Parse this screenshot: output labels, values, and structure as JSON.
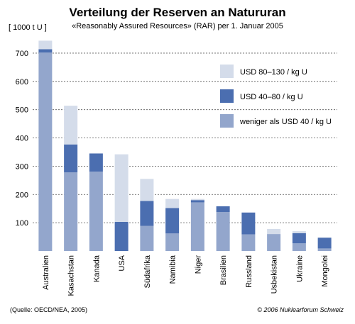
{
  "chart_data": {
    "type": "bar",
    "stacked": true,
    "title": "Verteilung der Reserven an Natururan",
    "subtitle": "«Reasonably Assured Resources» (RAR) per 1. Januar 2005",
    "ylabel": "[ 1000 t U ]",
    "ylim": [
      0,
      750
    ],
    "yticks": [
      100,
      200,
      300,
      400,
      500,
      600,
      700
    ],
    "grid": true,
    "legend_position": "top-right",
    "categories": [
      "Australien",
      "Kasachstan",
      "Kanada",
      "USA",
      "Südafrika",
      "Namibia",
      "Niger",
      "Brasilien",
      "Russland",
      "Usbekistan",
      "Ukraine",
      "Mongolei"
    ],
    "series": [
      {
        "name": "weniger als USD 40 / kg U",
        "color": "#93a6cc",
        "values": [
          702,
          278,
          281,
          0,
          89,
          62,
          172,
          138,
          59,
          60,
          27,
          9
        ]
      },
      {
        "name": "USD 40–80 / kg U",
        "color": "#4b6eb0",
        "values": [
          12,
          99,
          64,
          103,
          88,
          90,
          8,
          20,
          77,
          0,
          36,
          38
        ]
      },
      {
        "name": "USD 80–130 / kg U",
        "color": "#d4dcea",
        "values": [
          30,
          137,
          0,
          239,
          78,
          32,
          4,
          0,
          0,
          18,
          7,
          0
        ]
      }
    ]
  },
  "footer": {
    "source": "(Quelle: OECD/NEA, 2005)",
    "copyright": "© 2006 Nuklearforum Schweiz"
  }
}
